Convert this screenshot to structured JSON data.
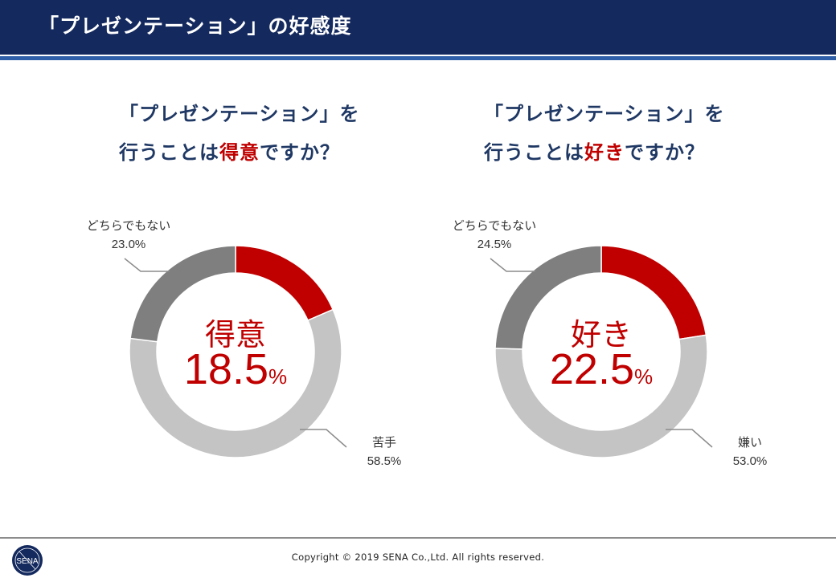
{
  "header": {
    "title": "「プレゼンテーション」の好感度"
  },
  "questions": [
    {
      "line1": "「プレゼンテーション」を",
      "line2_prefix": "行うことは",
      "emphasis": "得意",
      "line2_suffix": "ですか？"
    },
    {
      "line1": "「プレゼンテーション」を",
      "line2_prefix": "行うことは",
      "emphasis": "好き",
      "line2_suffix": "ですか？"
    }
  ],
  "chart_data": [
    {
      "type": "pie",
      "title": "「プレゼンテーション」を行うことは得意ですか？",
      "center_label": "得意",
      "center_value": "18.5",
      "center_unit": "%",
      "slices": [
        {
          "label": "得意",
          "value": 18.5,
          "display": "18.5%",
          "color": "#c00000"
        },
        {
          "label": "苦手",
          "value": 58.5,
          "display": "58.5%",
          "color": "#c4c4c4"
        },
        {
          "label": "どちらでもない",
          "value": 23.0,
          "display": "23.0%",
          "color": "#7f7f7f"
        }
      ]
    },
    {
      "type": "pie",
      "title": "「プレゼンテーション」を行うことは好きですか？",
      "center_label": "好き",
      "center_value": "22.5",
      "center_unit": "%",
      "slices": [
        {
          "label": "好き",
          "value": 22.5,
          "display": "22.5%",
          "color": "#c00000"
        },
        {
          "label": "嫌い",
          "value": 53.0,
          "display": "53.0%",
          "color": "#c4c4c4"
        },
        {
          "label": "どちらでもない",
          "value": 24.5,
          "display": "24.5%",
          "color": "#7f7f7f"
        }
      ]
    }
  ],
  "footer": {
    "copyright": "Copyright © 2019 SENA Co.,Ltd. All rights reserved.",
    "logo_text": "SENA"
  },
  "colors": {
    "header_bg": "#14295e",
    "accent": "#c00000",
    "question_text": "#1f3864"
  }
}
